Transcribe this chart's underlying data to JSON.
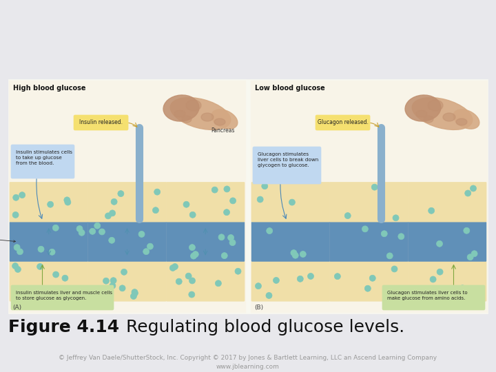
{
  "title_bold": "Figure 4.14",
  "title_regular": " Regulating blood glucose levels.",
  "title_fontsize": 18,
  "bg_color": "#d0d0d8",
  "slide_bg": "#e8e8ec",
  "white_area_color": "#ffffff",
  "copyright_text": "© Jeffrey Van Daele/ShutterStock, Inc. Copyright © 2017 by Jones & Bartlett Learning, LLC an Ascend Learning Company\nwww.jblearning.com",
  "copyright_fontsize": 6.5,
  "copyright_color": "#999999",
  "cell_color": "#f0dfa8",
  "blood_color": "#6090b8",
  "glucose_color": "#80c8b8",
  "glucose_edge": "#50a898",
  "label_box_color": "#f5e070",
  "info_box_color": "#c8dfa0",
  "text_box_color": "#c0d8f0",
  "pancreas_color1": "#d4a882",
  "pancreas_color2": "#c09070",
  "duct_color": "#8ab0cc",
  "panel_outline": "#aaaaaa",
  "cell_outline": "#b8b890"
}
